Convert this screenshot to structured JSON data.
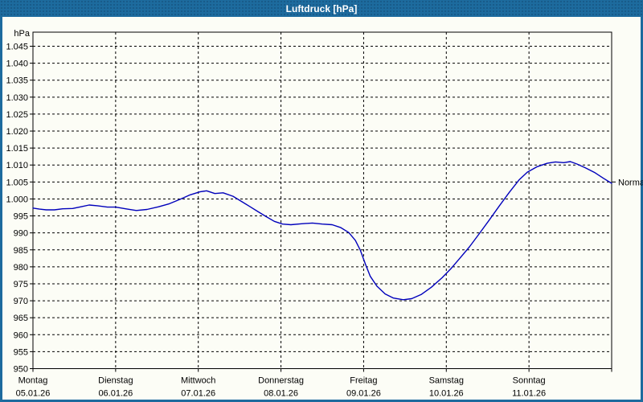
{
  "window": {
    "title": "Luftdruck [hPa]"
  },
  "colors": {
    "titlebar": "#1d6b9e",
    "frame": "#1d6b9e",
    "panel_bg": "#fcfdf6",
    "grid": "#000000",
    "curve": "#0000bb",
    "title_text": "#ffffff",
    "label_text": "#000000"
  },
  "chart_data": {
    "type": "line",
    "title": "Luftdruck [hPa]",
    "unit_label": "hPa",
    "grid": "dashed",
    "ylim": [
      950,
      1049
    ],
    "y_ticks": {
      "values": [
        1045,
        1040,
        1035,
        1030,
        1025,
        1020,
        1015,
        1010,
        1005,
        1000,
        995,
        990,
        985,
        980,
        975,
        970,
        965,
        960,
        955,
        950
      ],
      "labels": [
        "1.045",
        "1.040",
        "1.035",
        "1.030",
        "1.025",
        "1.020",
        "1.015",
        "1.010",
        "1.005",
        "1.000",
        "995",
        "990",
        "985",
        "980",
        "975",
        "970",
        "965",
        "960",
        "955",
        "950"
      ]
    },
    "x_days": [
      {
        "name": "Montag",
        "date": "05.01.26"
      },
      {
        "name": "Dienstag",
        "date": "06.01.26"
      },
      {
        "name": "Mittwoch",
        "date": "07.01.26"
      },
      {
        "name": "Donnerstag",
        "date": "08.01.26"
      },
      {
        "name": "Freitag",
        "date": "09.01.26"
      },
      {
        "name": "Samstag",
        "date": "10.01.26"
      },
      {
        "name": "Sonntag",
        "date": "11.01.26"
      }
    ],
    "x_range_days": [
      0,
      7
    ],
    "normal_marker": {
      "label": "Normal",
      "value": 1005
    },
    "series": [
      {
        "name": "Luftdruck",
        "color": "#0000bb",
        "points": [
          [
            0.0,
            997.3
          ],
          [
            0.08,
            997.0
          ],
          [
            0.16,
            996.8
          ],
          [
            0.26,
            996.8
          ],
          [
            0.36,
            997.1
          ],
          [
            0.48,
            997.2
          ],
          [
            0.58,
            997.7
          ],
          [
            0.68,
            998.2
          ],
          [
            0.78,
            998.0
          ],
          [
            0.9,
            997.6
          ],
          [
            1.0,
            997.6
          ],
          [
            1.12,
            997.1
          ],
          [
            1.25,
            996.6
          ],
          [
            1.38,
            996.9
          ],
          [
            1.52,
            997.7
          ],
          [
            1.65,
            998.6
          ],
          [
            1.78,
            999.9
          ],
          [
            1.9,
            1001.2
          ],
          [
            2.02,
            1002.1
          ],
          [
            2.1,
            1002.4
          ],
          [
            2.2,
            1001.6
          ],
          [
            2.3,
            1001.8
          ],
          [
            2.42,
            1000.8
          ],
          [
            2.52,
            999.3
          ],
          [
            2.62,
            997.8
          ],
          [
            2.72,
            996.3
          ],
          [
            2.82,
            994.8
          ],
          [
            2.92,
            993.4
          ],
          [
            3.02,
            992.6
          ],
          [
            3.12,
            992.4
          ],
          [
            3.25,
            992.7
          ],
          [
            3.38,
            992.9
          ],
          [
            3.5,
            992.6
          ],
          [
            3.62,
            992.4
          ],
          [
            3.72,
            991.6
          ],
          [
            3.82,
            990.1
          ],
          [
            3.9,
            987.8
          ],
          [
            3.96,
            984.9
          ],
          [
            4.02,
            980.9
          ],
          [
            4.08,
            977.2
          ],
          [
            4.16,
            974.3
          ],
          [
            4.26,
            972.0
          ],
          [
            4.36,
            970.8
          ],
          [
            4.48,
            970.3
          ],
          [
            4.58,
            970.6
          ],
          [
            4.7,
            971.9
          ],
          [
            4.82,
            974.0
          ],
          [
            4.95,
            976.8
          ],
          [
            5.06,
            979.6
          ],
          [
            5.16,
            982.4
          ],
          [
            5.28,
            985.9
          ],
          [
            5.4,
            989.8
          ],
          [
            5.52,
            993.8
          ],
          [
            5.64,
            997.9
          ],
          [
            5.76,
            1001.9
          ],
          [
            5.88,
            1005.6
          ],
          [
            5.98,
            1007.9
          ],
          [
            6.1,
            1009.5
          ],
          [
            6.22,
            1010.5
          ],
          [
            6.32,
            1010.9
          ],
          [
            6.42,
            1010.7
          ],
          [
            6.5,
            1011.0
          ],
          [
            6.58,
            1010.3
          ],
          [
            6.68,
            1009.2
          ],
          [
            6.8,
            1007.7
          ],
          [
            6.9,
            1006.1
          ],
          [
            7.0,
            1004.6
          ]
        ]
      }
    ]
  }
}
